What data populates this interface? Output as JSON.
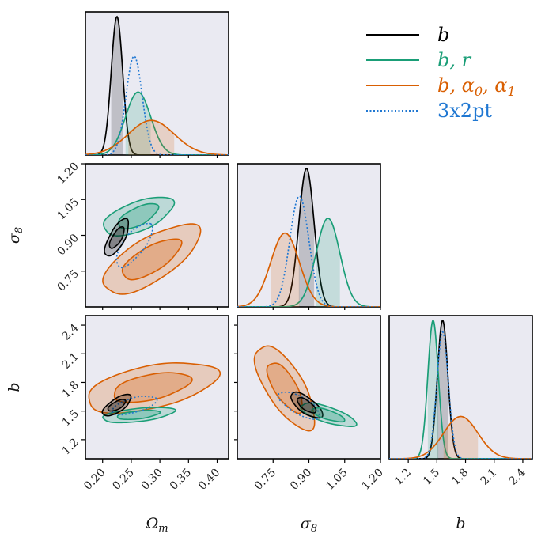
{
  "chart_data": {
    "type": "corner",
    "title": "",
    "params": [
      {
        "key": "Om",
        "label": "Ωm",
        "label_main": "Ω",
        "label_sub": "m",
        "range": [
          0.17,
          0.42
        ],
        "ticks": [
          "0.20",
          "0.25",
          "0.30",
          "0.35",
          "0.40"
        ]
      },
      {
        "key": "s8",
        "label": "σ8",
        "label_main": "σ",
        "label_sub": "8",
        "range": [
          0.6,
          1.2
        ],
        "ticks": [
          "0.75",
          "0.90",
          "1.05",
          "1.20"
        ]
      },
      {
        "key": "b",
        "label": "b",
        "label_main": "b",
        "label_sub": "",
        "range": [
          1.0,
          2.5
        ],
        "ticks": [
          "1.2",
          "1.5",
          "1.8",
          "2.1",
          "2.4"
        ]
      }
    ],
    "series": [
      {
        "name": "b",
        "label_main": "b",
        "label_sub": "",
        "color": "#000000",
        "style": "solid",
        "Om": [
          0.225,
          0.01
        ],
        "s8": [
          0.89,
          0.032
        ],
        "b": [
          1.56,
          0.055
        ],
        "pairs": {
          "s8_Om": [
            [
              0.9,
              0.045
            ],
            [
              0.85,
              0.025
            ]
          ],
          "b_Om": [
            [
              0.65,
              0.052
            ],
            [
              0.55,
              0.03
            ]
          ],
          "b_s8": [
            [
              -0.9,
              0.11
            ],
            [
              -0.9,
              0.07
            ]
          ]
        }
      },
      {
        "name": "b, r",
        "label_main": "b, r",
        "label_sub": "",
        "color": "#1a9e77",
        "style": "solid",
        "Om": [
          0.262,
          0.022
        ],
        "s8": [
          0.98,
          0.05
        ],
        "b": [
          1.46,
          0.055
        ],
        "pairs": {
          "s8_Om": [
            [
              0.4,
              0.12
            ],
            [
              0.5,
              0.07
            ]
          ],
          "b_Om": [
            [
              0.3,
              0.14
            ],
            [
              0.3,
              0.08
            ]
          ],
          "b_s8": [
            [
              -0.75,
              0.14
            ],
            [
              -0.75,
              0.09
            ]
          ]
        }
      },
      {
        "name": "b, α0, α1",
        "label_main": "b, α",
        "label_sub": "0",
        "label_main2": ", α",
        "label_sub2": "1",
        "color": "#d95f02",
        "style": "solid",
        "Om": [
          0.285,
          0.04
        ],
        "s8": [
          0.8,
          0.06
        ],
        "b": [
          1.75,
          0.18
        ],
        "pairs": {
          "s8_Om": [
            [
              0.88,
              0.125
            ],
            [
              0.85,
              0.075
            ]
          ],
          "b_Om": [
            [
              0.3,
              0.2
            ],
            [
              0.3,
              0.12
            ]
          ],
          "b_s8": [
            [
              -0.9,
              0.4
            ],
            [
              -0.9,
              0.25
            ]
          ]
        }
      },
      {
        "name": "3x2pt",
        "label_main": "3x2pt",
        "label_sub": "",
        "color": "#1f77d2",
        "style": "dotted",
        "Om": [
          0.255,
          0.014
        ],
        "s8": [
          0.86,
          0.04
        ],
        "b": [
          1.56,
          0.06
        ],
        "pairs": {
          "s8_Om": [
            [
              0.8,
              0.07
            ]
          ],
          "b_Om": [
            [
              0.4,
              0.07
            ]
          ],
          "b_s8": [
            [
              -0.85,
              0.12
            ]
          ]
        }
      }
    ],
    "legend": "top-right"
  }
}
